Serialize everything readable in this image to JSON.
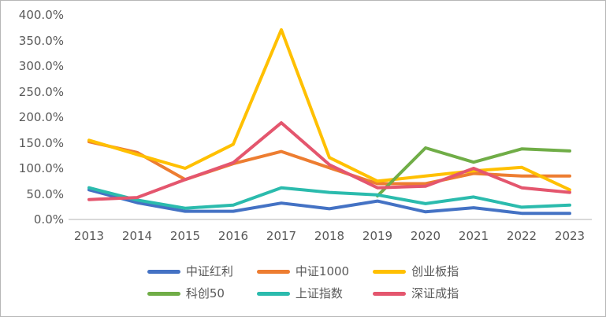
{
  "chart_data": {
    "type": "line",
    "title": "",
    "xlabel": "",
    "ylabel": "",
    "categories": [
      "2013",
      "2014",
      "2015",
      "2016",
      "2017",
      "2018",
      "2019",
      "2020",
      "2021",
      "2022",
      "2023"
    ],
    "series": [
      {
        "name": "中证红利",
        "color": "#4472C4",
        "values": [
          58,
          33,
          16,
          16,
          32,
          21,
          36,
          15,
          23,
          12,
          12
        ]
      },
      {
        "name": "中证1000",
        "color": "#ED7D31",
        "values": [
          152,
          131,
          78,
          109,
          133,
          101,
          70,
          70,
          90,
          85,
          85
        ]
      },
      {
        "name": "创业板指",
        "color": "#FFC000",
        "values": [
          155,
          127,
          100,
          147,
          371,
          121,
          75,
          85,
          95,
          102,
          58
        ]
      },
      {
        "name": "科创50",
        "color": "#70AD47",
        "values": [
          null,
          null,
          null,
          null,
          null,
          null,
          46,
          140,
          112,
          138,
          134
        ]
      },
      {
        "name": "上证指数",
        "color": "#2BBBAD",
        "values": [
          62,
          38,
          22,
          28,
          62,
          53,
          48,
          31,
          44,
          24,
          28
        ]
      },
      {
        "name": "深证成指",
        "color": "#E4566E",
        "values": [
          39,
          43,
          78,
          111,
          189,
          107,
          62,
          65,
          100,
          62,
          53
        ]
      }
    ],
    "y_ticks": [
      {
        "value": 0,
        "label": "0.0%"
      },
      {
        "value": 50,
        "label": "50.0%"
      },
      {
        "value": 100,
        "label": "100.0%"
      },
      {
        "value": 150,
        "label": "150.0%"
      },
      {
        "value": 200,
        "label": "200.0%"
      },
      {
        "value": 250,
        "label": "250.0%"
      },
      {
        "value": 300,
        "label": "300.0%"
      },
      {
        "value": 350,
        "label": "350.0%"
      },
      {
        "value": 400,
        "label": "400.0%"
      }
    ],
    "ylim": [
      0,
      400
    ],
    "grid": false,
    "legend_position": "bottom"
  },
  "colors": {
    "axis_text": "#595959",
    "axis_line": "#d9d9d9",
    "background": "#ffffff",
    "frame_border": "#b7b7b7"
  }
}
